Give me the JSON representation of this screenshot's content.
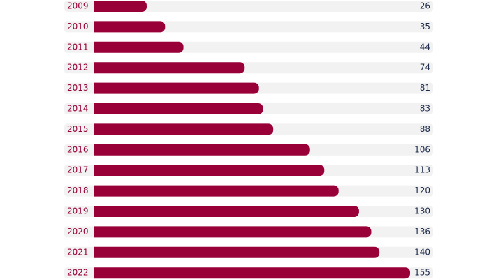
{
  "chart_data": {
    "type": "bar",
    "orientation": "horizontal",
    "categories": [
      "2009",
      "2010",
      "2011",
      "2012",
      "2013",
      "2014",
      "2015",
      "2016",
      "2017",
      "2018",
      "2019",
      "2020",
      "2021",
      "2022"
    ],
    "values": [
      26,
      35,
      44,
      74,
      81,
      83,
      88,
      106,
      113,
      120,
      130,
      136,
      140,
      155
    ],
    "color": "#990038"
  }
}
